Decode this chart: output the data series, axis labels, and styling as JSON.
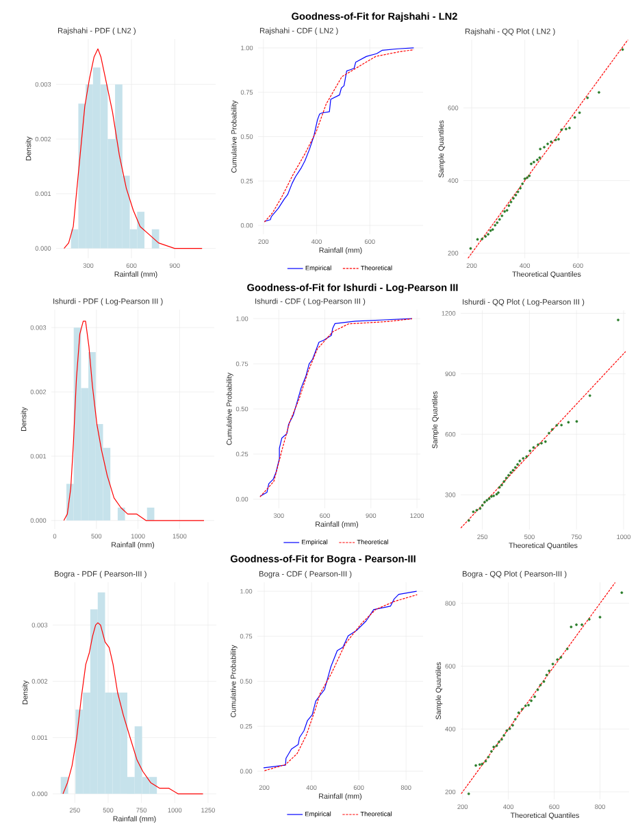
{
  "chart_data": [
    {
      "type": "histogram",
      "title": "Rajshahi - PDF ( LN2 )",
      "xlabel": "Rainfall (mm)",
      "ylabel": "Density",
      "color": "#c6e2eb",
      "bins": [
        180,
        231,
        282,
        333,
        384,
        435,
        486,
        537,
        588,
        639,
        690,
        741,
        792
      ],
      "values": [
        0.00035,
        0.00265,
        0.003,
        0.00331,
        0.003,
        0.002,
        0.003,
        0.00133,
        0.00035,
        0.00067,
        0,
        0.00035
      ],
      "series": [
        {
          "type": "line",
          "color": "#ff0000",
          "x": [
            132,
            164,
            196,
            236,
            276,
            308,
            340,
            367,
            388,
            420,
            468,
            516,
            564,
            612,
            660,
            724,
            788,
            899,
            995,
            1090
          ],
          "values": [
            0,
            0.0001,
            0.0004,
            0.0015,
            0.0026,
            0.0031,
            0.0035,
            0.00365,
            0.0035,
            0.0031,
            0.0025,
            0.0017,
            0.0011,
            0.0007,
            0.0004,
            0.00025,
            0.0001,
            0,
            0,
            0
          ]
        }
      ],
      "xlim": [
        77,
        1184
      ],
      "ylim": [
        -0.00018,
        0.00383
      ],
      "xticks": [
        300,
        600,
        900
      ],
      "yticks": [
        {
          "value": 0,
          "label": "0.000"
        },
        {
          "value": 0.001,
          "label": "0.001"
        },
        {
          "value": 0.002,
          "label": "0.002"
        },
        {
          "value": 0.003,
          "label": "0.003"
        }
      ],
      "grid": true
    },
    {
      "type": "line",
      "title": "Rajshahi - CDF ( LN2 )",
      "xlabel": "Rainfall (mm)",
      "ylabel": "Cumulative Probability",
      "annotations": [
        "Goodness-of-Fit for Rajshahi - LN2"
      ],
      "series": [
        {
          "name": "Empirical",
          "color": "#0000ff",
          "line_style": "solid",
          "x": [
            204,
            226,
            230,
            256,
            278,
            291,
            308,
            321,
            343,
            356,
            373,
            390,
            403,
            411,
            419,
            448,
            453,
            486,
            493,
            503,
            513,
            541,
            547,
            587,
            626,
            647,
            706,
            765
          ],
          "values": [
            0.023,
            0.032,
            0.05,
            0.096,
            0.147,
            0.173,
            0.237,
            0.275,
            0.326,
            0.364,
            0.428,
            0.505,
            0.594,
            0.627,
            0.633,
            0.64,
            0.71,
            0.735,
            0.774,
            0.787,
            0.87,
            0.885,
            0.92,
            0.952,
            0.968,
            0.987,
            0.995,
            1.0
          ]
        },
        {
          "name": "Theoretical",
          "color": "#ff0000",
          "line_style": "dashed",
          "x": [
            204,
            234,
            269,
            312,
            356,
            399,
            436,
            495,
            545,
            622,
            706,
            765
          ],
          "values": [
            0.019,
            0.07,
            0.16,
            0.288,
            0.403,
            0.53,
            0.684,
            0.838,
            0.883,
            0.952,
            0.977,
            0.99
          ]
        }
      ],
      "xlim": [
        180,
        800
      ],
      "ylim": [
        -0.05,
        1.05
      ],
      "xticks": [
        200,
        400,
        600
      ],
      "yticks": [
        {
          "value": 0,
          "label": "0.00"
        },
        {
          "value": 0.25,
          "label": "0.25"
        },
        {
          "value": 0.5,
          "label": "0.50"
        },
        {
          "value": 0.75,
          "label": "0.75"
        },
        {
          "value": 1,
          "label": "1.00"
        }
      ],
      "grid": true,
      "legend": "bottom"
    },
    {
      "type": "scatter",
      "title": "Rajshahi - QQ Plot ( LN2 )",
      "xlabel": "Theoretical Quantiles",
      "ylabel": "Sample Quantiles",
      "series": [
        {
          "color": "#2a7d2a",
          "marker": "circle",
          "x": [
            196,
            222,
            239,
            252,
            262,
            271,
            279,
            288,
            296,
            305,
            314,
            324,
            333,
            340,
            348,
            357,
            366,
            374,
            383,
            391,
            400,
            409,
            417,
            424,
            434,
            447,
            456,
            458,
            473,
            486,
            499,
            516,
            527,
            538,
            555,
            568,
            588,
            606,
            636,
            679,
            768
          ],
          "values": [
            213,
            238,
            239,
            246,
            252,
            262,
            265,
            277,
            284,
            293,
            303,
            315,
            318,
            331,
            341,
            351,
            360,
            369,
            379,
            391,
            405,
            408,
            413,
            446,
            451,
            457,
            463,
            487,
            492,
            501,
            507,
            512,
            514,
            540,
            542,
            545,
            574,
            587,
            628,
            643,
            761
          ]
        },
        {
          "type": "line",
          "color": "#ff0000",
          "line_style": "dashed",
          "x": [
            186,
            788
          ],
          "values": [
            186,
            788
          ]
        }
      ],
      "xlim": [
        169,
        795
      ],
      "ylim": [
        186,
        788
      ],
      "xticks": [
        200,
        400,
        600
      ],
      "yticks": [
        200,
        400,
        600
      ],
      "grid": true
    },
    {
      "type": "histogram",
      "title": "Ishurdi - PDF ( Log-Pearson III )",
      "xlabel": "Rainfall (mm)",
      "ylabel": "Density",
      "color": "#c6e2eb",
      "bins": [
        140,
        228,
        316,
        404,
        492,
        580,
        668,
        756,
        844,
        932,
        1020,
        1108,
        1196
      ],
      "values": [
        0.00057,
        0.003,
        0.00206,
        0.00262,
        0.0015,
        0.00113,
        0,
        0.0002,
        0,
        0,
        0,
        0.0002
      ],
      "series": [
        {
          "type": "line",
          "color": "#ff0000",
          "x": [
            109,
            151,
            192,
            224,
            260,
            301,
            342,
            370,
            411,
            452,
            506,
            561,
            630,
            712,
            794,
            876,
            985,
            1095,
            1259,
            1533,
            1793
          ],
          "values": [
            0,
            0.0001,
            0.0005,
            0.0012,
            0.0022,
            0.0029,
            0.0031,
            0.0031,
            0.0027,
            0.0021,
            0.0015,
            0.0011,
            0.0007,
            0.00035,
            0.0002,
            0.0001,
            0.0001,
            0,
            0,
            0,
            0
          ]
        }
      ],
      "xlim": [
        -41,
        1916
      ],
      "ylim": [
        -0.00013,
        0.00328
      ],
      "xticks": [
        0,
        500,
        1000,
        1500
      ],
      "yticks": [
        {
          "value": 0,
          "label": "0.000"
        },
        {
          "value": 0.001,
          "label": "0.001"
        },
        {
          "value": 0.002,
          "label": "0.002"
        },
        {
          "value": 0.003,
          "label": "0.003"
        }
      ],
      "grid": true
    },
    {
      "type": "line",
      "title": "Ishurdi - CDF ( Log-Pearson III )",
      "xlabel": "Rainfall (mm)",
      "ylabel": "Cumulative Probability",
      "annotations": [
        "Goodness-of-Fit for Ishurdi - Log-Pearson III"
      ],
      "series": [
        {
          "name": "Empirical",
          "color": "#0000ff",
          "line_style": "solid",
          "x": [
            178,
            223,
            235,
            264,
            282,
            304,
            304,
            320,
            353,
            364,
            394,
            416,
            446,
            476,
            498,
            520,
            562,
            592,
            643,
            651,
            666,
            799,
            1007,
            1168
          ],
          "values": [
            0.016,
            0.038,
            0.086,
            0.111,
            0.149,
            0.225,
            0.282,
            0.339,
            0.364,
            0.415,
            0.465,
            0.528,
            0.617,
            0.68,
            0.75,
            0.775,
            0.87,
            0.88,
            0.908,
            0.946,
            0.973,
            0.986,
            0.994,
            1.0
          ]
        },
        {
          "name": "Theoretical",
          "color": "#ff0000",
          "line_style": "dashed",
          "x": [
            178,
            268,
            322,
            371,
            432,
            490,
            551,
            651,
            754,
            1007,
            1168
          ],
          "values": [
            0.013,
            0.099,
            0.276,
            0.427,
            0.554,
            0.705,
            0.832,
            0.927,
            0.971,
            0.984,
            0.999
          ]
        }
      ],
      "xlim": [
        134,
        1222
      ],
      "ylim": [
        -0.05,
        1.05
      ],
      "xticks": [
        300,
        600,
        900,
        1200
      ],
      "yticks": [
        {
          "value": 0,
          "label": "0.00"
        },
        {
          "value": 0.25,
          "label": "0.25"
        },
        {
          "value": 0.5,
          "label": "0.50"
        },
        {
          "value": 0.75,
          "label": "0.75"
        },
        {
          "value": 1,
          "label": "1.00"
        }
      ],
      "grid": true,
      "legend": "bottom"
    },
    {
      "type": "scatter",
      "title": "Ishurdi - QQ Plot ( Log-Pearson III )",
      "xlabel": "Theoretical Quantiles",
      "ylabel": "Sample Quantiles",
      "series": [
        {
          "color": "#2a7d2a",
          "marker": "circle",
          "x": [
            178,
            202,
            220,
            238,
            250,
            262,
            274,
            286,
            298,
            310,
            326,
            335,
            341,
            353,
            365,
            377,
            389,
            401,
            413,
            425,
            437,
            449,
            467,
            485,
            503,
            522,
            546,
            564,
            585,
            604,
            621,
            645,
            670,
            707,
            751,
            821,
            971
          ],
          "values": [
            173,
            216,
            224,
            232,
            248,
            264,
            273,
            281,
            292,
            295,
            303,
            311,
            337,
            349,
            366,
            383,
            397,
            411,
            422,
            436,
            451,
            468,
            481,
            490,
            518,
            535,
            549,
            556,
            564,
            606,
            624,
            645,
            646,
            660,
            664,
            792,
            1167
          ]
        },
        {
          "type": "line",
          "color": "#ff0000",
          "line_style": "dashed",
          "x": [
            135,
            1011
          ],
          "values": [
            135,
            1011
          ]
        }
      ],
      "xlim": [
        135,
        1011
      ],
      "ylim": [
        128,
        1215
      ],
      "xticks": [
        250,
        500,
        750,
        1000
      ],
      "yticks": [
        300,
        600,
        900,
        1200
      ],
      "grid": true
    },
    {
      "type": "histogram",
      "title": "Bogra - PDF ( Pearson-III )",
      "xlabel": "Rainfall (mm)",
      "ylabel": "Density",
      "color": "#c6e2eb",
      "bins": [
        144,
        200,
        255,
        311,
        366,
        422,
        477,
        533,
        588,
        644,
        699,
        755,
        810,
        866
      ],
      "values": [
        0.0003,
        0,
        0.0015,
        0.0018,
        0.00328,
        0.00358,
        0.0018,
        0.0018,
        0.0018,
        0.0003,
        0.0012,
        0.0003,
        0.0003
      ],
      "series": [
        {
          "type": "line",
          "color": "#ff0000",
          "x": [
            161,
            195,
            229,
            264,
            298,
            332,
            358,
            383,
            406,
            423,
            443,
            477,
            508,
            537,
            571,
            614,
            665,
            717,
            760,
            819,
            887,
            956,
            1024,
            1127,
            1212
          ],
          "values": [
            0,
            0.0002,
            0.0005,
            0.001,
            0.0017,
            0.0023,
            0.0025,
            0.0028,
            0.003,
            0.00304,
            0.003,
            0.0027,
            0.0026,
            0.0023,
            0.0018,
            0.0014,
            0.001,
            0.0006,
            0.0004,
            0.0002,
            0.0001,
            0.0001,
            0,
            0,
            0
          ]
        }
      ],
      "xlim": [
        84,
        1312
      ],
      "ylim": [
        -0.00016,
        0.00376
      ],
      "xticks": [
        250,
        500,
        750,
        1000,
        1250
      ],
      "yticks": [
        {
          "value": 0,
          "label": "0.000"
        },
        {
          "value": 0.001,
          "label": "0.001"
        },
        {
          "value": 0.002,
          "label": "0.002"
        },
        {
          "value": 0.003,
          "label": "0.003"
        }
      ],
      "grid": true
    },
    {
      "type": "line",
      "title": "Bogra - CDF ( Pearson-III )",
      "xlabel": "Rainfall (mm)",
      "ylabel": "Cumulative Probability",
      "annotations": [
        "Goodness-of-Fit for Bogra - Pearson-III"
      ],
      "series": [
        {
          "name": "Empirical",
          "color": "#0000ff",
          "line_style": "solid",
          "x": [
            197,
            290,
            292,
            315,
            344,
            349,
            368,
            383,
            403,
            418,
            435,
            455,
            474,
            482,
            509,
            533,
            555,
            592,
            631,
            663,
            734,
            749,
            769,
            845
          ],
          "values": [
            0.019,
            0.034,
            0.072,
            0.123,
            0.149,
            0.187,
            0.225,
            0.282,
            0.314,
            0.39,
            0.42,
            0.454,
            0.543,
            0.581,
            0.67,
            0.689,
            0.752,
            0.784,
            0.835,
            0.898,
            0.917,
            0.956,
            0.983,
            1.0
          ]
        },
        {
          "name": "Theoretical",
          "color": "#ff0000",
          "line_style": "dashed",
          "x": [
            201,
            290,
            339,
            378,
            418,
            435,
            484,
            543,
            612,
            671,
            749,
            847
          ],
          "values": [
            0.003,
            0.037,
            0.098,
            0.2,
            0.352,
            0.428,
            0.543,
            0.708,
            0.822,
            0.898,
            0.943,
            0.981
          ]
        }
      ],
      "xlim": [
        171,
        872
      ],
      "ylim": [
        -0.05,
        1.05
      ],
      "xticks": [
        200,
        400,
        600,
        800
      ],
      "yticks": [
        {
          "value": 0,
          "label": "0.00"
        },
        {
          "value": 0.25,
          "label": "0.25"
        },
        {
          "value": 0.5,
          "label": "0.50"
        },
        {
          "value": 0.75,
          "label": "0.75"
        },
        {
          "value": 1,
          "label": "1.00"
        }
      ],
      "grid": true,
      "legend": "bottom"
    },
    {
      "type": "scatter",
      "title": "Bogra - QQ Plot ( Pearson-III )",
      "xlabel": "Theoretical Quantiles",
      "ylabel": "Sample Quantiles",
      "series": [
        {
          "color": "#2a7d2a",
          "marker": "circle",
          "x": [
            227,
            258,
            275,
            286,
            301,
            313,
            326,
            336,
            349,
            359,
            371,
            381,
            393,
            406,
            419,
            430,
            445,
            460,
            475,
            488,
            500,
            515,
            528,
            540,
            555,
            567,
            578,
            594,
            614,
            629,
            657,
            674,
            697,
            721,
            753,
            800,
            895
          ],
          "values": [
            194,
            284,
            287,
            289,
            298,
            311,
            329,
            343,
            347,
            359,
            367,
            380,
            395,
            401,
            412,
            431,
            452,
            463,
            474,
            476,
            490,
            503,
            525,
            540,
            551,
            572,
            585,
            607,
            621,
            628,
            655,
            725,
            732,
            732,
            749,
            756,
            834
          ]
        },
        {
          "type": "line",
          "color": "#ff0000",
          "line_style": "dashed",
          "x": [
            194,
            866
          ],
          "values": [
            194,
            866
          ]
        }
      ],
      "xlim": [
        192,
        927
      ],
      "ylim": [
        176,
        867
      ],
      "xticks": [
        200,
        400,
        600,
        800
      ],
      "yticks": [
        200,
        400,
        600,
        800
      ],
      "grid": true
    }
  ]
}
